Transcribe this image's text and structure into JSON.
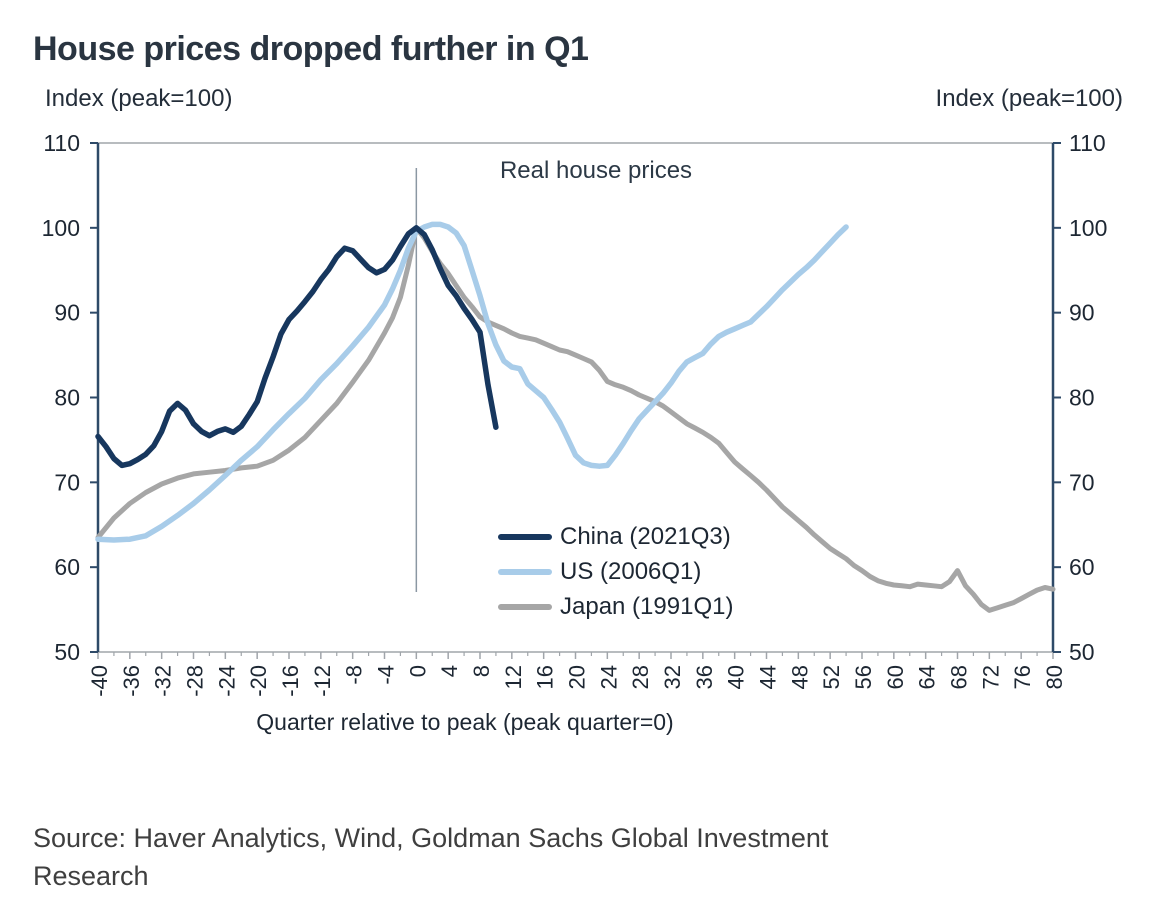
{
  "title": "House prices dropped further in Q1",
  "source": {
    "line1": "Source: Haver Analytics, Wind, Goldman Sachs Global Investment",
    "line2": "Research"
  },
  "colors": {
    "axis_dark": "#2e4a68",
    "axis_gray": "#a0a5aa",
    "tick_label": "#1d2733",
    "peak_marker": "#8b97a3"
  },
  "chart_data": {
    "type": "line",
    "title": "House prices dropped further in Q1",
    "annotation": "Real house prices",
    "xlabel": "Quarter relative to peak (peak quarter=0)",
    "ylabel_left": "Index (peak=100)",
    "ylabel_right": "Index (peak=100)",
    "xlim": [
      -40,
      80
    ],
    "ylim": [
      50,
      110
    ],
    "x_ticks": [
      -40,
      -36,
      -32,
      -28,
      -24,
      -20,
      -16,
      -12,
      -8,
      -4,
      0,
      4,
      8,
      12,
      16,
      20,
      24,
      28,
      32,
      36,
      40,
      44,
      48,
      52,
      56,
      60,
      64,
      68,
      72,
      76,
      80
    ],
    "x_minor_tick_step": 2,
    "y_ticks": [
      50,
      60,
      70,
      80,
      90,
      100,
      110
    ],
    "gridlines": false,
    "peak_marker_x": 0,
    "legend_position": "inside-lower-middle",
    "series": [
      {
        "name": "China (2021Q3)",
        "color": "#17375e",
        "width": 5.5,
        "points": [
          [
            -40,
            75.4
          ],
          [
            -39,
            74.2
          ],
          [
            -38,
            72.8
          ],
          [
            -37,
            72.0
          ],
          [
            -36,
            72.2
          ],
          [
            -35,
            72.7
          ],
          [
            -34,
            73.3
          ],
          [
            -33,
            74.3
          ],
          [
            -32,
            76.0
          ],
          [
            -31,
            78.4
          ],
          [
            -30,
            79.3
          ],
          [
            -29,
            78.5
          ],
          [
            -28,
            76.9
          ],
          [
            -27,
            76.0
          ],
          [
            -26,
            75.5
          ],
          [
            -25,
            76.0
          ],
          [
            -24,
            76.3
          ],
          [
            -23,
            75.9
          ],
          [
            -22,
            76.6
          ],
          [
            -21,
            78.0
          ],
          [
            -20,
            79.5
          ],
          [
            -19,
            82.3
          ],
          [
            -18,
            84.8
          ],
          [
            -17,
            87.5
          ],
          [
            -16,
            89.2
          ],
          [
            -15,
            90.2
          ],
          [
            -14,
            91.3
          ],
          [
            -13,
            92.5
          ],
          [
            -12,
            93.9
          ],
          [
            -11,
            95.1
          ],
          [
            -10,
            96.6
          ],
          [
            -9,
            97.6
          ],
          [
            -8,
            97.3
          ],
          [
            -7,
            96.3
          ],
          [
            -6,
            95.3
          ],
          [
            -5,
            94.7
          ],
          [
            -4,
            95.1
          ],
          [
            -3,
            96.2
          ],
          [
            -2,
            97.8
          ],
          [
            -1,
            99.3
          ],
          [
            0,
            100
          ],
          [
            1,
            99.2
          ],
          [
            2,
            97.4
          ],
          [
            3,
            95.2
          ],
          [
            4,
            93.2
          ],
          [
            5,
            92.0
          ],
          [
            6,
            90.5
          ],
          [
            7,
            89.2
          ],
          [
            8,
            87.7
          ],
          [
            9,
            81.5
          ],
          [
            10,
            76.5
          ]
        ]
      },
      {
        "name": "US (2006Q1)",
        "color": "#a8cce9",
        "width": 5.5,
        "points": [
          [
            -40,
            63.3
          ],
          [
            -38,
            63.2
          ],
          [
            -36,
            63.3
          ],
          [
            -34,
            63.7
          ],
          [
            -32,
            64.8
          ],
          [
            -30,
            66.1
          ],
          [
            -28,
            67.5
          ],
          [
            -26,
            69.1
          ],
          [
            -24,
            70.8
          ],
          [
            -22,
            72.6
          ],
          [
            -20,
            74.2
          ],
          [
            -18,
            76.2
          ],
          [
            -16,
            78.1
          ],
          [
            -14,
            79.9
          ],
          [
            -12,
            82.1
          ],
          [
            -10,
            84.0
          ],
          [
            -8,
            86.1
          ],
          [
            -6,
            88.3
          ],
          [
            -4,
            90.9
          ],
          [
            -3,
            92.8
          ],
          [
            -2,
            95.0
          ],
          [
            -1,
            97.6
          ],
          [
            0,
            99.6
          ],
          [
            1,
            100.1
          ],
          [
            2,
            100.4
          ],
          [
            3,
            100.4
          ],
          [
            4,
            100.1
          ],
          [
            5,
            99.4
          ],
          [
            6,
            97.9
          ],
          [
            7,
            95.0
          ],
          [
            8,
            92.0
          ],
          [
            9,
            88.7
          ],
          [
            10,
            86.2
          ],
          [
            11,
            84.3
          ],
          [
            12,
            83.6
          ],
          [
            13,
            83.4
          ],
          [
            14,
            81.6
          ],
          [
            15,
            80.8
          ],
          [
            16,
            80.0
          ],
          [
            17,
            78.6
          ],
          [
            18,
            77.1
          ],
          [
            19,
            75.2
          ],
          [
            20,
            73.2
          ],
          [
            21,
            72.3
          ],
          [
            22,
            72.0
          ],
          [
            23,
            71.9
          ],
          [
            24,
            72.0
          ],
          [
            25,
            73.2
          ],
          [
            26,
            74.6
          ],
          [
            27,
            76.1
          ],
          [
            28,
            77.5
          ],
          [
            29,
            78.5
          ],
          [
            30,
            79.5
          ],
          [
            31,
            80.5
          ],
          [
            32,
            81.7
          ],
          [
            33,
            83.1
          ],
          [
            34,
            84.2
          ],
          [
            35,
            84.7
          ],
          [
            36,
            85.2
          ],
          [
            37,
            86.3
          ],
          [
            38,
            87.2
          ],
          [
            39,
            87.7
          ],
          [
            40,
            88.1
          ],
          [
            41,
            88.5
          ],
          [
            42,
            88.9
          ],
          [
            43,
            89.8
          ],
          [
            44,
            90.7
          ],
          [
            45,
            91.7
          ],
          [
            46,
            92.7
          ],
          [
            47,
            93.6
          ],
          [
            48,
            94.5
          ],
          [
            49,
            95.3
          ],
          [
            50,
            96.2
          ],
          [
            51,
            97.2
          ],
          [
            52,
            98.2
          ],
          [
            53,
            99.2
          ],
          [
            54,
            100.1
          ]
        ]
      },
      {
        "name": "Japan (1991Q1)",
        "color": "#a6a6a6",
        "width": 5,
        "points": [
          [
            -40,
            63.5
          ],
          [
            -38,
            65.8
          ],
          [
            -36,
            67.5
          ],
          [
            -34,
            68.8
          ],
          [
            -32,
            69.8
          ],
          [
            -30,
            70.5
          ],
          [
            -28,
            71.0
          ],
          [
            -26,
            71.2
          ],
          [
            -24,
            71.4
          ],
          [
            -22,
            71.7
          ],
          [
            -20,
            71.9
          ],
          [
            -18,
            72.6
          ],
          [
            -16,
            73.8
          ],
          [
            -14,
            75.3
          ],
          [
            -12,
            77.3
          ],
          [
            -10,
            79.3
          ],
          [
            -8,
            81.8
          ],
          [
            -6,
            84.4
          ],
          [
            -4,
            87.6
          ],
          [
            -3,
            89.4
          ],
          [
            -2,
            91.8
          ],
          [
            -1,
            95.6
          ],
          [
            0,
            100
          ],
          [
            1,
            98.8
          ],
          [
            2,
            97.2
          ],
          [
            3,
            95.8
          ],
          [
            4,
            94.6
          ],
          [
            5,
            93.2
          ],
          [
            6,
            91.8
          ],
          [
            7,
            90.7
          ],
          [
            8,
            89.5
          ],
          [
            9,
            88.9
          ],
          [
            10,
            88.5
          ],
          [
            11,
            88.1
          ],
          [
            12,
            87.6
          ],
          [
            13,
            87.2
          ],
          [
            14,
            87.0
          ],
          [
            15,
            86.8
          ],
          [
            16,
            86.4
          ],
          [
            17,
            86.0
          ],
          [
            18,
            85.6
          ],
          [
            19,
            85.4
          ],
          [
            20,
            85.0
          ],
          [
            21,
            84.6
          ],
          [
            22,
            84.2
          ],
          [
            23,
            83.2
          ],
          [
            24,
            81.9
          ],
          [
            25,
            81.5
          ],
          [
            26,
            81.2
          ],
          [
            27,
            80.8
          ],
          [
            28,
            80.3
          ],
          [
            29,
            79.9
          ],
          [
            30,
            79.5
          ],
          [
            31,
            79.0
          ],
          [
            32,
            78.3
          ],
          [
            33,
            77.6
          ],
          [
            34,
            76.9
          ],
          [
            35,
            76.4
          ],
          [
            36,
            75.9
          ],
          [
            37,
            75.3
          ],
          [
            38,
            74.6
          ],
          [
            39,
            73.5
          ],
          [
            40,
            72.4
          ],
          [
            41,
            71.6
          ],
          [
            42,
            70.8
          ],
          [
            43,
            70.0
          ],
          [
            44,
            69.1
          ],
          [
            45,
            68.1
          ],
          [
            46,
            67.1
          ],
          [
            47,
            66.3
          ],
          [
            48,
            65.5
          ],
          [
            49,
            64.7
          ],
          [
            50,
            63.8
          ],
          [
            51,
            63.0
          ],
          [
            52,
            62.2
          ],
          [
            53,
            61.6
          ],
          [
            54,
            61.0
          ],
          [
            55,
            60.2
          ],
          [
            56,
            59.6
          ],
          [
            57,
            58.9
          ],
          [
            58,
            58.4
          ],
          [
            59,
            58.1
          ],
          [
            60,
            57.9
          ],
          [
            61,
            57.8
          ],
          [
            62,
            57.7
          ],
          [
            63,
            58.0
          ],
          [
            64,
            57.9
          ],
          [
            65,
            57.8
          ],
          [
            66,
            57.7
          ],
          [
            67,
            58.3
          ],
          [
            68,
            59.6
          ],
          [
            69,
            57.8
          ],
          [
            70,
            56.8
          ],
          [
            71,
            55.6
          ],
          [
            72,
            54.9
          ],
          [
            73,
            55.2
          ],
          [
            74,
            55.5
          ],
          [
            75,
            55.8
          ],
          [
            76,
            56.3
          ],
          [
            77,
            56.8
          ],
          [
            78,
            57.3
          ],
          [
            79,
            57.6
          ],
          [
            80,
            57.4
          ]
        ]
      }
    ]
  }
}
